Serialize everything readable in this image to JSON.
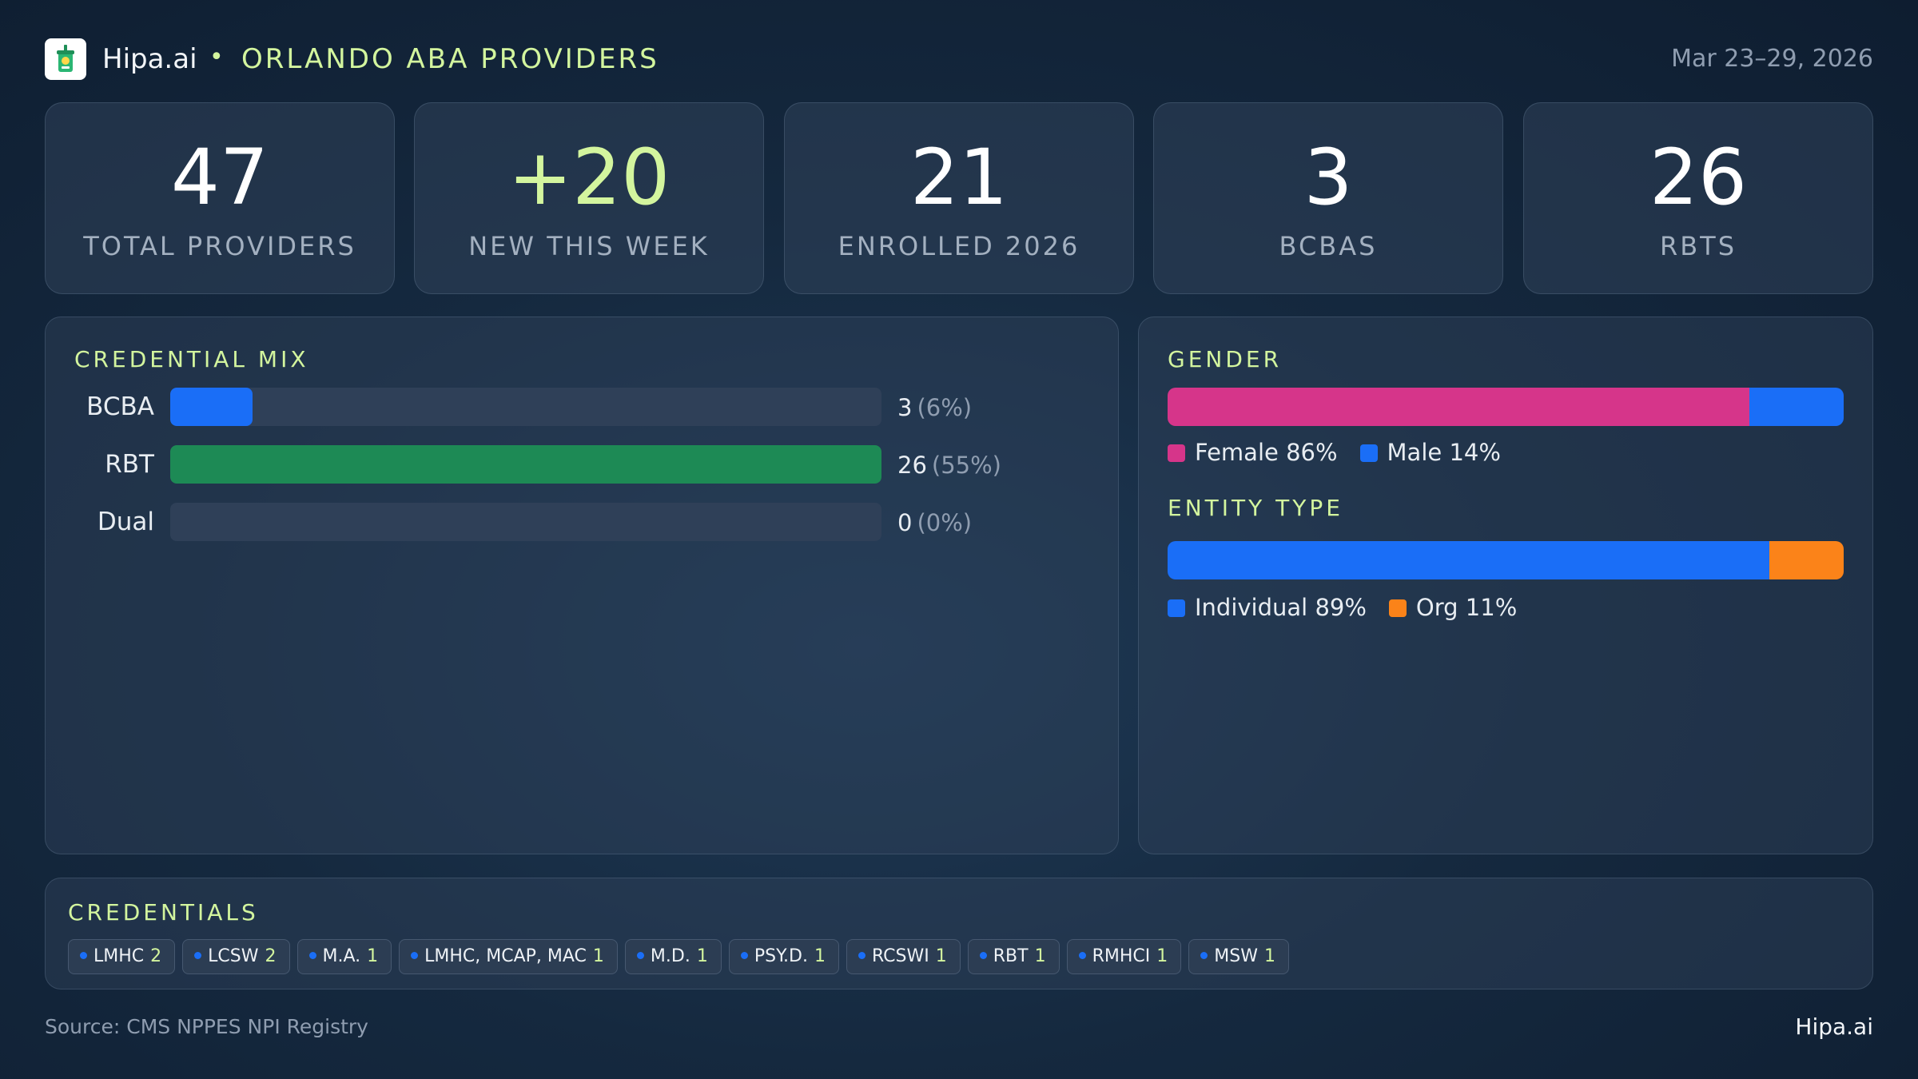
{
  "header": {
    "brand": "Hipa.ai",
    "separator": "•",
    "title": "ORLANDO ABA PROVIDERS",
    "date_range": "Mar 23–29, 2026"
  },
  "kpis": [
    {
      "value": "47",
      "label": "TOTAL PROVIDERS",
      "accent": false
    },
    {
      "value": "+20",
      "label": "NEW THIS WEEK",
      "accent": true
    },
    {
      "value": "21",
      "label": "ENROLLED 2026",
      "accent": false
    },
    {
      "value": "3",
      "label": "BCBAS",
      "accent": false
    },
    {
      "value": "26",
      "label": "RBTS",
      "accent": false
    }
  ],
  "chart_data": [
    {
      "type": "bar",
      "orientation": "horizontal",
      "title": "CREDENTIAL MIX",
      "categories": [
        "BCBA",
        "RBT",
        "Dual"
      ],
      "values": [
        3,
        26,
        0
      ],
      "value_labels": [
        "3",
        "26",
        "0"
      ],
      "percent_labels": [
        "(6%)",
        "(55%)",
        "(0%)"
      ],
      "colors": [
        "#1a6ef7",
        "#1d8a55",
        "#1a6ef7"
      ],
      "xlim": [
        0,
        26
      ]
    },
    {
      "type": "bar",
      "orientation": "horizontal-stacked-100",
      "title": "GENDER",
      "categories": [
        "Female",
        "Male"
      ],
      "values": [
        86,
        14
      ],
      "legend_labels": [
        "Female 86%",
        "Male 14%"
      ],
      "colors": [
        "#d6358a",
        "#1a6ef7"
      ]
    },
    {
      "type": "bar",
      "orientation": "horizontal-stacked-100",
      "title": "ENTITY TYPE",
      "categories": [
        "Individual",
        "Org"
      ],
      "values": [
        89,
        11
      ],
      "legend_labels": [
        "Individual 89%",
        "Org 11%"
      ],
      "colors": [
        "#1a6ef7",
        "#fb8319"
      ]
    }
  ],
  "credentials": {
    "title": "CREDENTIALS",
    "chips": [
      {
        "label": "LMHC",
        "count": "2"
      },
      {
        "label": "LCSW",
        "count": "2"
      },
      {
        "label": "M.A.",
        "count": "1"
      },
      {
        "label": "LMHC, MCAP, MAC",
        "count": "1"
      },
      {
        "label": "M.D.",
        "count": "1"
      },
      {
        "label": "PSY.D.",
        "count": "1"
      },
      {
        "label": "RCSWI",
        "count": "1"
      },
      {
        "label": "RBT",
        "count": "1"
      },
      {
        "label": "RMHCI",
        "count": "1"
      },
      {
        "label": "MSW",
        "count": "1"
      }
    ]
  },
  "footer": {
    "source": "Source: CMS NPPES NPI Registry",
    "brand": "Hipa.ai"
  }
}
